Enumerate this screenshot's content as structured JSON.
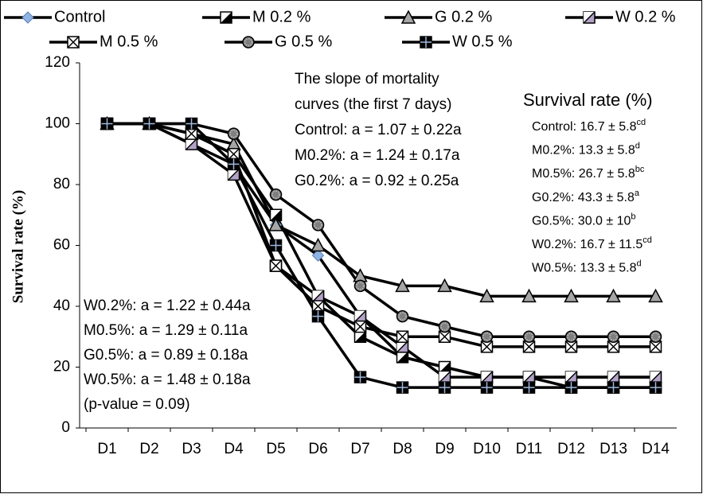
{
  "chart_data": {
    "type": "line",
    "y_axis_label": "Survival rate (%)",
    "categories": [
      "D1",
      "D2",
      "D3",
      "D4",
      "D5",
      "D6",
      "D7",
      "D8",
      "D9",
      "D10",
      "D11",
      "D12",
      "D13",
      "D14"
    ],
    "ylim": [
      0,
      120
    ],
    "yticks": [
      0,
      20,
      40,
      60,
      80,
      100,
      120
    ],
    "series": [
      {
        "name": "Control",
        "color": "#000000",
        "marker": "diamond",
        "marker_color": "#8eb4e3",
        "values": [
          100,
          100,
          93.3,
          86.7,
          66.7,
          56.7,
          36.7,
          23.3,
          20,
          16.7,
          16.7,
          16.7,
          16.7,
          16.7
        ]
      },
      {
        "name": "M 0.2 %",
        "color": "#000000",
        "marker": "half-square",
        "marker_color": "#000000",
        "values": [
          100,
          100,
          96.7,
          90,
          70,
          43.3,
          30,
          23.3,
          20,
          16.7,
          16.7,
          13.3,
          13.3,
          13.3
        ]
      },
      {
        "name": "G 0.2 %",
        "color": "#000000",
        "marker": "triangle",
        "marker_color": "#a6a6a6",
        "values": [
          100,
          100,
          96.7,
          93.3,
          66.7,
          60,
          50,
          46.7,
          46.7,
          43.3,
          43.3,
          43.3,
          43.3,
          43.3
        ]
      },
      {
        "name": "W 0.2 %",
        "color": "#000000",
        "marker": "diag-square",
        "marker_color": "#b3a2c7",
        "values": [
          100,
          100,
          93.3,
          83.3,
          53.3,
          43.3,
          36.7,
          26.7,
          16.7,
          16.7,
          16.7,
          16.7,
          16.7,
          16.7
        ]
      },
      {
        "name": "M 0.5 %",
        "color": "#000000",
        "marker": "x-square",
        "marker_color": "#ffffff",
        "values": [
          100,
          100,
          96.7,
          90,
          53.3,
          40,
          33.3,
          30,
          30,
          26.7,
          26.7,
          26.7,
          26.7,
          26.7
        ]
      },
      {
        "name": "G 0.5 %",
        "color": "#000000",
        "marker": "circle",
        "marker_color": "#7f7f7f",
        "values": [
          100,
          100,
          100,
          96.7,
          76.7,
          66.7,
          46.7,
          36.7,
          33.3,
          30,
          30,
          30,
          30,
          30
        ]
      },
      {
        "name": "W 0.5 %",
        "color": "#000000",
        "marker": "cross-square",
        "marker_color": "#000000",
        "values": [
          100,
          100,
          100,
          86.7,
          60,
          36.7,
          16.7,
          13.3,
          13.3,
          13.3,
          13.3,
          13.3,
          13.3,
          13.3
        ]
      }
    ],
    "annotations": {
      "slopes_top": [
        "The slope of mortality",
        "curves (the first 7 days)",
        "Control: a = 1.07 ± 0.22a",
        "M0.2%: a = 1.24 ± 0.17a",
        "G0.2%: a = 0.92 ± 0.25a"
      ],
      "slopes_bottom": [
        "W0.2%: a = 1.22 ± 0.44a",
        "M0.5%: a = 1.29 ± 0.11a",
        "G0.5%: a = 0.89 ± 0.18a",
        "W0.5%: a = 1.48 ± 0.18a",
        "(p-value = 0.09)"
      ],
      "survival_title": "Survival rate (%)",
      "survival": [
        {
          "text": "Control: 16.7 ± 5.8",
          "sup": "cd"
        },
        {
          "text": "M0.2%: 13.3 ± 5.8",
          "sup": "d"
        },
        {
          "text": "M0.5%: 26.7 ± 5.8",
          "sup": "bc"
        },
        {
          "text": "G0.2%: 43.3 ± 5.8",
          "sup": "a"
        },
        {
          "text": "G0.5%: 30.0 ± 10",
          "sup": "b"
        },
        {
          "text": "W0.2%: 16.7 ± 11.5",
          "sup": "cd"
        },
        {
          "text": "W0.5%: 13.3 ± 5.8",
          "sup": "d"
        }
      ]
    }
  }
}
